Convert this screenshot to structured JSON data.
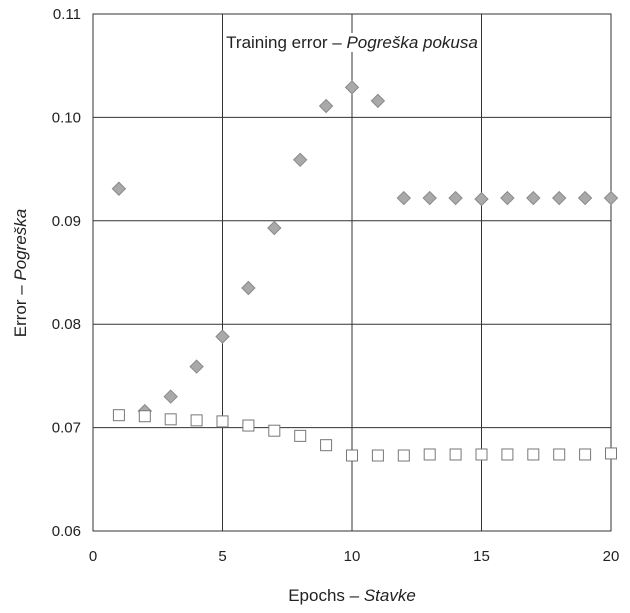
{
  "chart_data": {
    "type": "scatter",
    "title_main": "Training error – ",
    "title_italic": "Pogreška pokusa",
    "xlabel_main": "Epochs – ",
    "xlabel_italic": "Stavke",
    "ylabel_main": "Error – ",
    "ylabel_italic": "Pogreška",
    "xlim": [
      0,
      20
    ],
    "ylim": [
      0.06,
      0.11
    ],
    "x_ticks": [
      0,
      5,
      10,
      15,
      20
    ],
    "y_ticks": [
      0.06,
      0.07,
      0.08,
      0.09,
      0.1,
      0.11
    ],
    "x_tick_labels": [
      "0",
      "5",
      "10",
      "15",
      "20"
    ],
    "y_tick_labels": [
      "0.06",
      "0.07",
      "0.08",
      "0.09",
      "0.10",
      "0.11"
    ],
    "grid": true,
    "series": [
      {
        "marker": "diamond",
        "color": "#a9a9a9",
        "stroke": "#8a8a8a",
        "x": [
          1,
          2,
          3,
          4,
          5,
          6,
          7,
          8,
          9,
          10,
          11,
          12,
          13,
          14,
          15,
          16,
          17,
          18,
          19,
          20
        ],
        "y": [
          0.0931,
          0.0716,
          0.073,
          0.0759,
          0.0788,
          0.0835,
          0.0893,
          0.0959,
          0.1011,
          0.1029,
          0.1016,
          0.0922,
          0.0922,
          0.0922,
          0.0921,
          0.0922,
          0.0922,
          0.0922,
          0.0922,
          0.0922
        ]
      },
      {
        "marker": "square-open",
        "color": "#ffffff",
        "stroke": "#777777",
        "x": [
          1,
          2,
          3,
          4,
          5,
          6,
          7,
          8,
          9,
          10,
          11,
          12,
          13,
          14,
          15,
          16,
          17,
          18,
          19,
          20
        ],
        "y": [
          0.0712,
          0.0711,
          0.0708,
          0.0707,
          0.0706,
          0.0702,
          0.0697,
          0.0692,
          0.0683,
          0.0673,
          0.0673,
          0.0673,
          0.0674,
          0.0674,
          0.0674,
          0.0674,
          0.0674,
          0.0674,
          0.0674,
          0.0675
        ]
      }
    ]
  }
}
